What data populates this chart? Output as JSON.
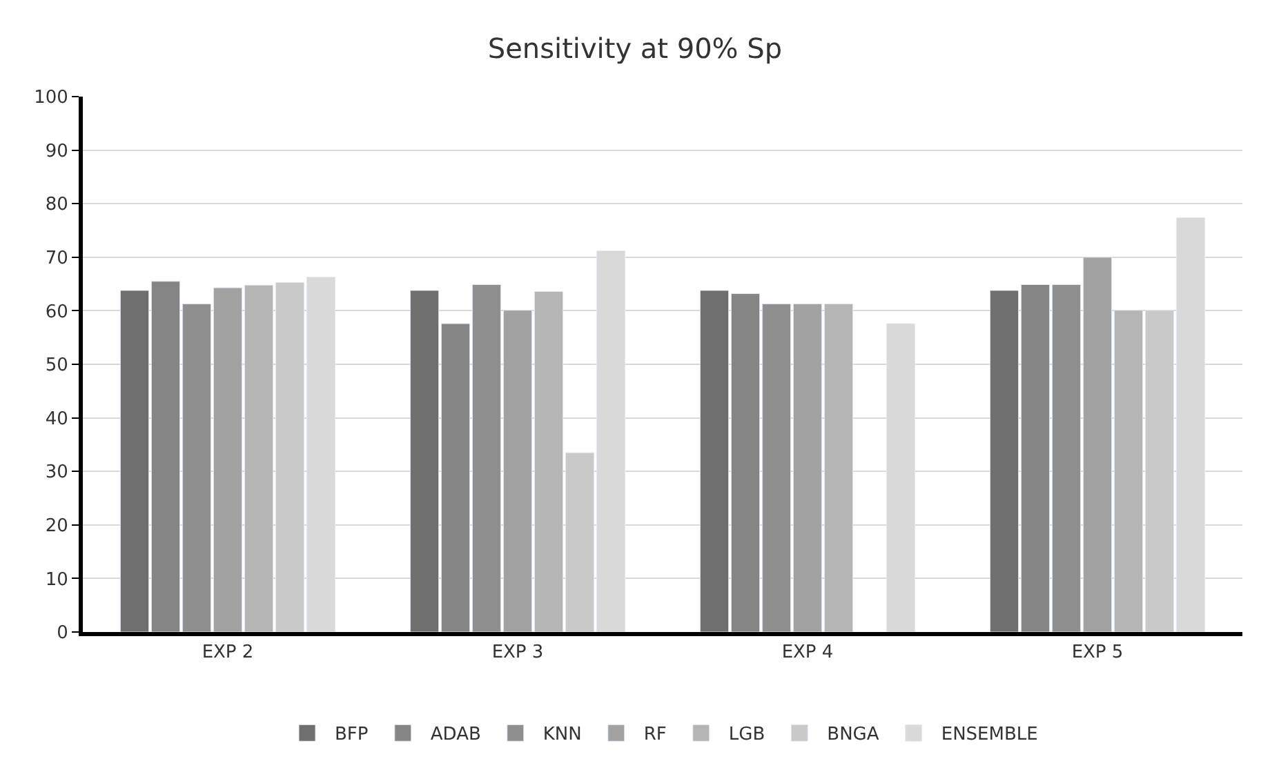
{
  "chart_data": {
    "type": "bar",
    "title": "Sensitivity at 90% Sp",
    "categories": [
      "EXP 2",
      "EXP 3",
      "EXP 4",
      "EXP 5"
    ],
    "series": [
      {
        "name": "BFP",
        "color": "#6f6f6f",
        "values": [
          63.8,
          63.8,
          63.8,
          63.8
        ]
      },
      {
        "name": "ADAB",
        "color": "#858585",
        "values": [
          65.5,
          57.6,
          63.2,
          64.9
        ]
      },
      {
        "name": "KNN",
        "color": "#8f8f8f",
        "values": [
          61.3,
          64.9,
          61.3,
          64.9
        ]
      },
      {
        "name": "RF",
        "color": "#a2a2a2",
        "values": [
          64.3,
          60.1,
          61.3,
          70.0
        ]
      },
      {
        "name": "LGB",
        "color": "#b5b5b5",
        "values": [
          64.8,
          63.6,
          61.3,
          60.1
        ]
      },
      {
        "name": "BNGA",
        "color": "#c9c9c9",
        "values": [
          65.3,
          33.5,
          null,
          60.1
        ]
      },
      {
        "name": "ENSEMBLE",
        "color": "#d9d9d9",
        "values": [
          66.3,
          71.2,
          57.6,
          77.4
        ]
      }
    ],
    "ylim": [
      0,
      100
    ],
    "yticks": [
      0,
      10,
      20,
      30,
      40,
      50,
      60,
      70,
      80,
      90,
      100
    ],
    "grid": "y",
    "legend": "bottom"
  }
}
